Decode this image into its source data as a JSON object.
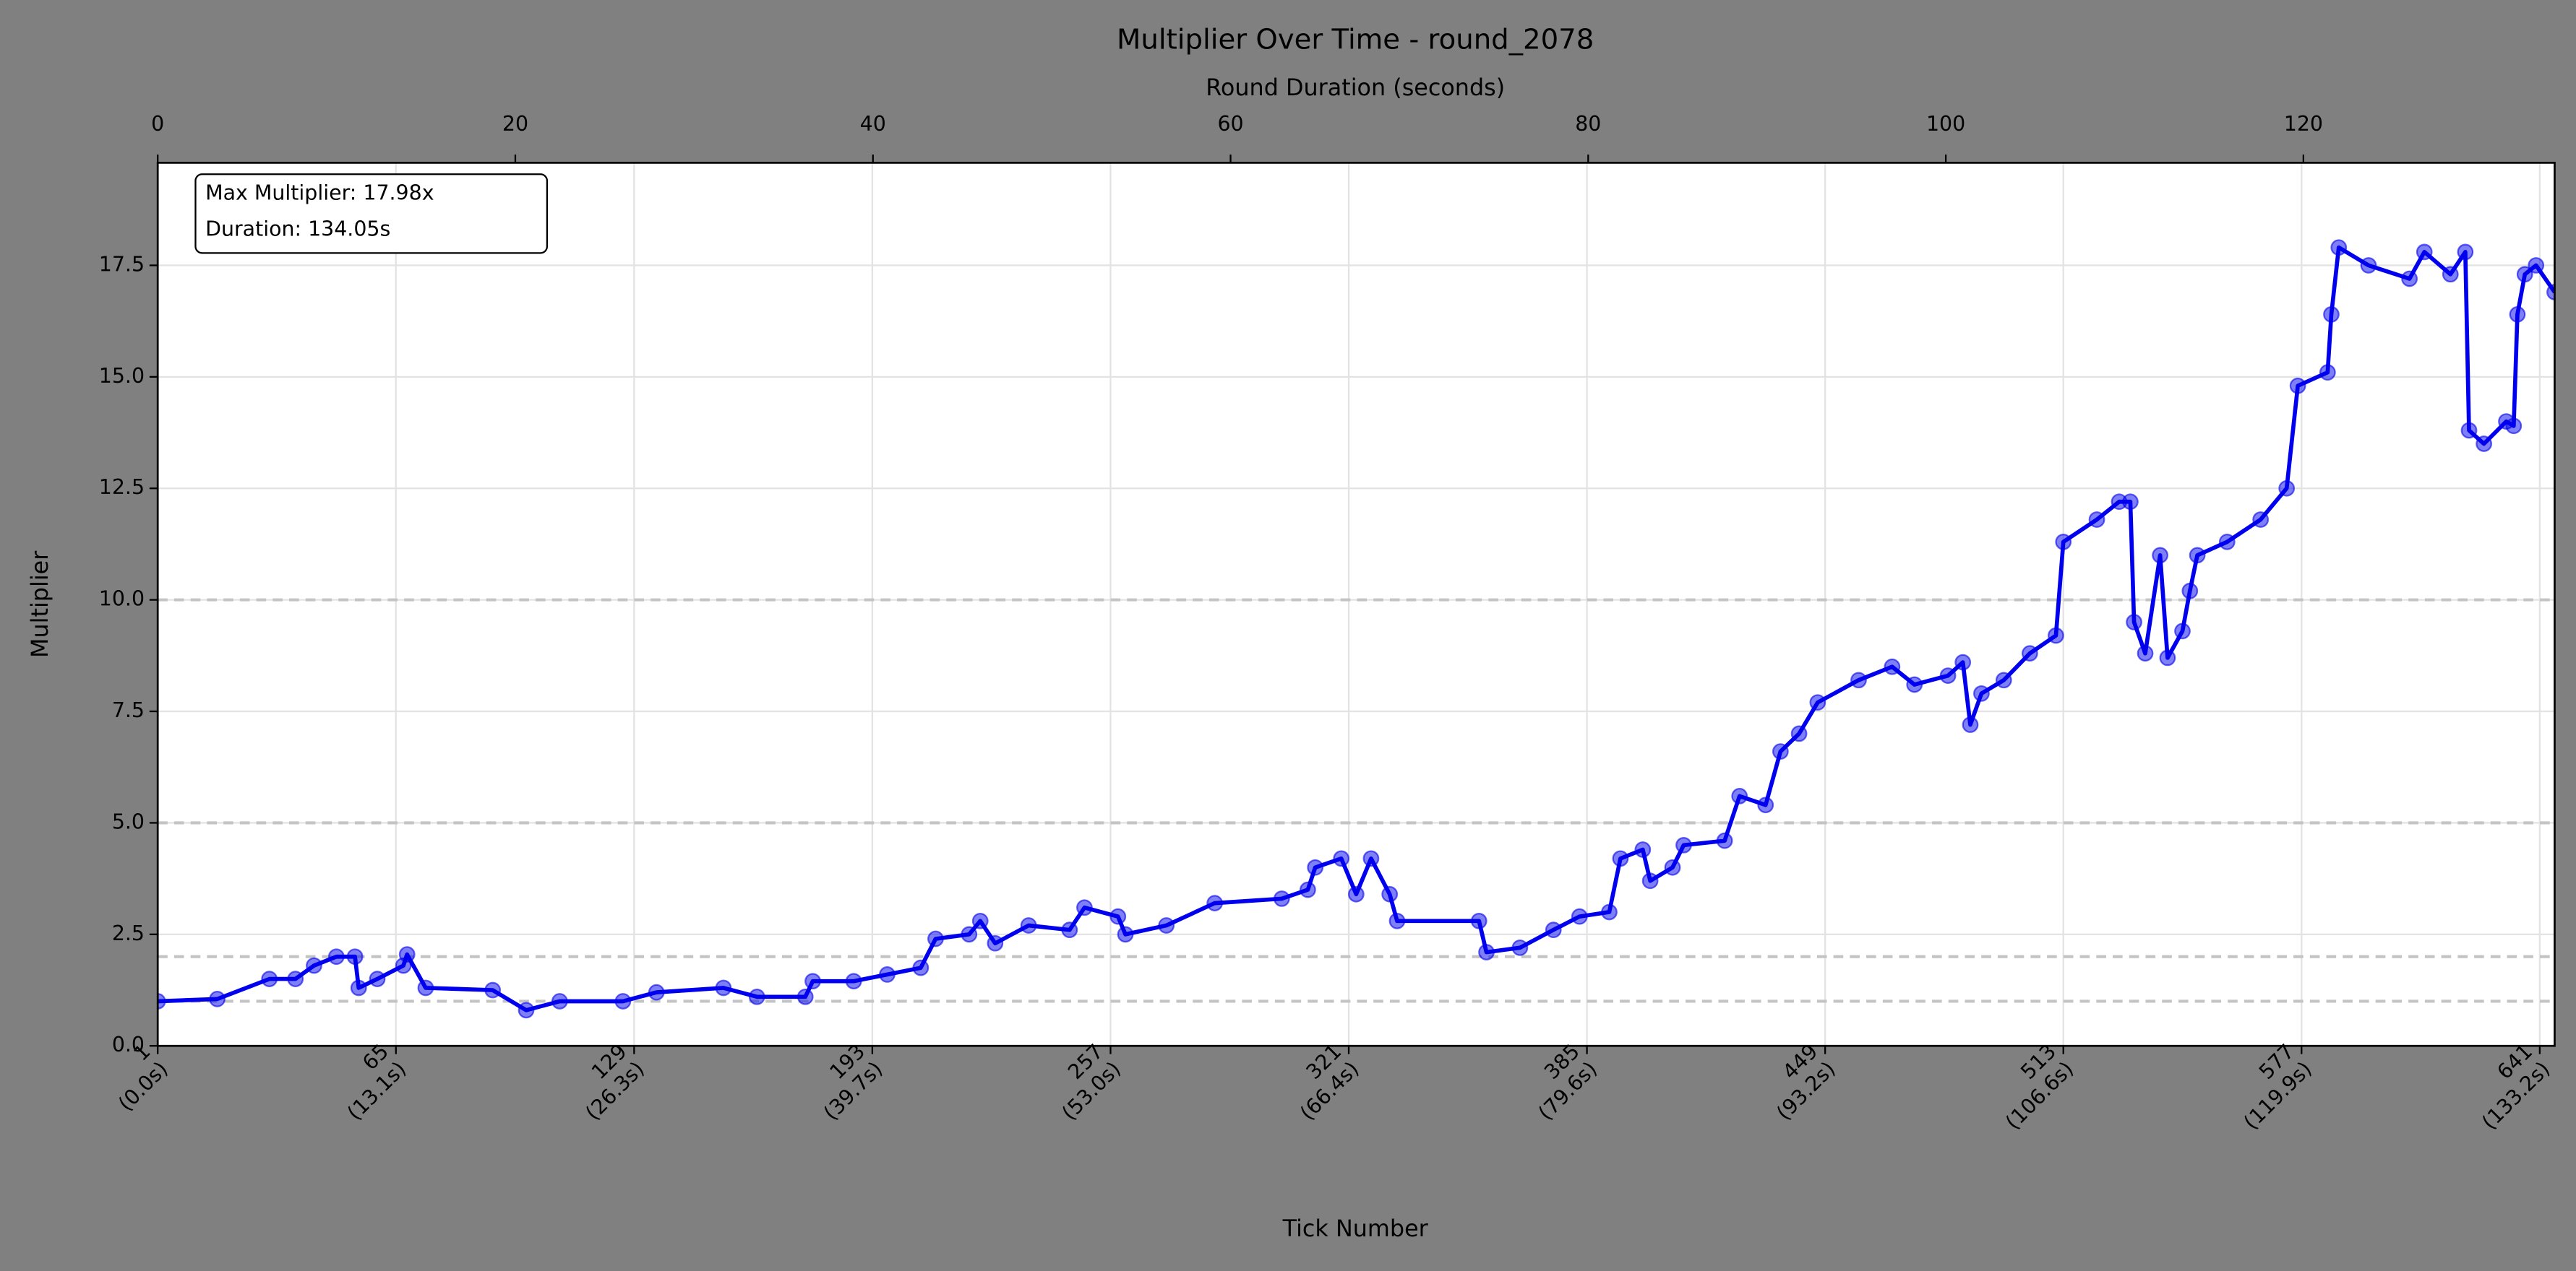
{
  "chart_data": {
    "type": "line",
    "title": "Multiplier Over Time - round_2078",
    "xlabel": "Tick Number",
    "ylabel": "Multiplier",
    "x2label": "Round Duration (seconds)",
    "annotation": [
      "Max Multiplier: 17.98x",
      "Duration: 134.05s"
    ],
    "color": "#0000ee",
    "grid": true,
    "reference_lines": [
      1,
      2,
      5,
      10
    ],
    "reference_color": "#c4c4c4",
    "xlim": [
      1,
      645
    ],
    "x2lim": [
      0,
      134.05
    ],
    "ylim": [
      0,
      19.8
    ],
    "xticks": [
      {
        "value": 1,
        "label": "1\n(0.0s)"
      },
      {
        "value": 65,
        "label": "65\n(13.1s)"
      },
      {
        "value": 129,
        "label": "129\n(26.3s)"
      },
      {
        "value": 193,
        "label": "193\n(39.7s)"
      },
      {
        "value": 257,
        "label": "257\n(53.0s)"
      },
      {
        "value": 321,
        "label": "321\n(66.4s)"
      },
      {
        "value": 385,
        "label": "385\n(79.6s)"
      },
      {
        "value": 449,
        "label": "449\n(93.2s)"
      },
      {
        "value": 513,
        "label": "513\n(106.6s)"
      },
      {
        "value": 577,
        "label": "577\n(119.9s)"
      },
      {
        "value": 641,
        "label": "641\n(133.2s)"
      }
    ],
    "x2ticks": [
      0,
      20,
      40,
      60,
      80,
      100,
      120
    ],
    "yticks": [
      {
        "value": 0,
        "label": "0.0"
      },
      2.5,
      {
        "value": 5,
        "label": "5.0"
      },
      7.5,
      {
        "value": 10,
        "label": "10.0"
      },
      12.5,
      {
        "value": 15,
        "label": "15.0"
      },
      17.5
    ],
    "x": [
      1,
      17,
      31,
      38,
      43,
      49,
      54,
      55,
      60,
      67,
      68,
      73,
      91,
      100,
      109,
      126,
      135,
      153,
      162,
      175,
      177,
      188,
      197,
      206,
      210,
      219,
      222,
      226,
      235,
      246,
      250,
      259,
      261,
      272,
      285,
      303,
      310,
      312,
      319,
      323,
      327,
      332,
      334,
      356,
      358,
      367,
      376,
      383,
      391,
      394,
      400,
      402,
      408,
      411,
      422,
      426,
      433,
      437,
      442,
      447,
      458,
      467,
      473,
      482,
      486,
      488,
      491,
      497,
      504,
      511,
      513,
      522,
      528,
      531,
      532,
      535,
      539,
      541,
      545,
      547,
      549,
      557,
      566,
      573,
      576,
      584,
      585,
      587,
      595,
      606,
      610,
      617,
      621,
      622,
      626,
      632,
      634,
      635,
      637,
      640,
      645
    ],
    "values": [
      1.0,
      1.05,
      1.5,
      1.5,
      1.8,
      2.0,
      2.0,
      1.3,
      1.5,
      1.8,
      2.05,
      1.3,
      1.25,
      0.8,
      1.0,
      1.0,
      1.2,
      1.3,
      1.1,
      1.1,
      1.45,
      1.45,
      1.6,
      1.75,
      2.4,
      2.5,
      2.8,
      2.3,
      2.7,
      2.6,
      3.1,
      2.9,
      2.5,
      2.7,
      3.2,
      3.3,
      3.5,
      4.0,
      4.2,
      3.4,
      4.2,
      3.4,
      2.8,
      2.8,
      2.1,
      2.2,
      2.6,
      2.9,
      3.0,
      4.2,
      4.4,
      3.7,
      4.0,
      4.5,
      4.6,
      5.6,
      5.4,
      6.6,
      7.0,
      7.7,
      8.2,
      8.5,
      8.1,
      8.3,
      8.6,
      7.2,
      7.9,
      8.2,
      8.8,
      9.2,
      11.3,
      11.8,
      12.2,
      12.2,
      9.5,
      8.8,
      11.0,
      8.7,
      9.3,
      10.2,
      11.0,
      11.3,
      11.8,
      12.5,
      14.8,
      15.1,
      16.4,
      17.9,
      17.5,
      17.2,
      17.8,
      17.3,
      17.8,
      13.8,
      13.5,
      14.0,
      13.9,
      16.4,
      17.3,
      17.5,
      16.9
    ]
  }
}
